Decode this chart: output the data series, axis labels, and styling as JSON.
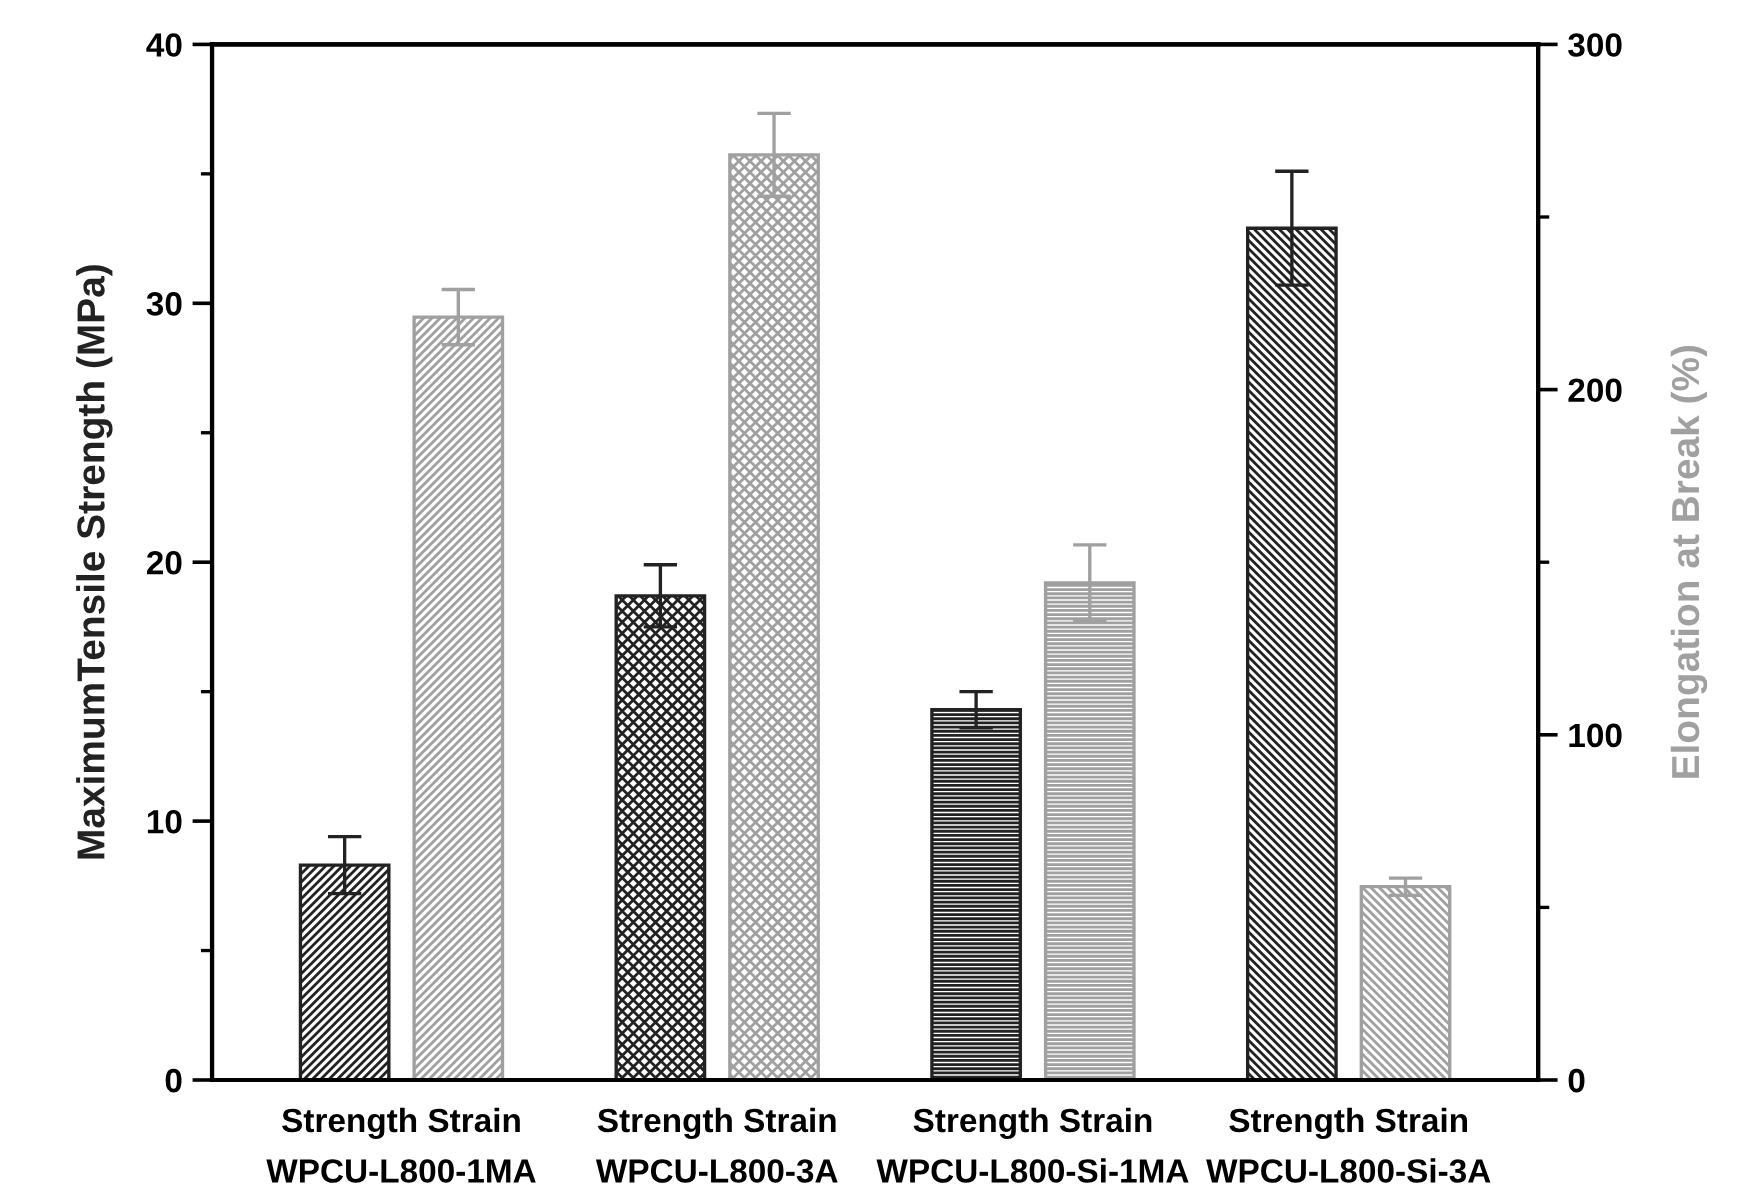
{
  "chart_data": {
    "type": "bar",
    "ylabel": "MaximumTensile Strength (MPa)",
    "y2label": "Elongation at Break (%)",
    "categories": [
      "Strength Strain\nWPCU-L800-1MA",
      "Strength Strain\nWPCU-L800-3A",
      "Strength Strain\nWPCU-L800-Si-1MA",
      "Strength Strain\nWPCU-L800-Si-3A"
    ],
    "series": [
      {
        "color": "#222222",
        "values": [
          8.3,
          18.7,
          14.3,
          32.9
        ],
        "errors": [
          1.1,
          1.2,
          0.7,
          2.2
        ]
      },
      {
        "color": "#a0a0a0",
        "axis": "y2",
        "values": [
          221,
          268,
          144,
          56
        ],
        "errors": [
          8,
          12,
          11,
          2.5
        ]
      }
    ],
    "ylim": [
      0,
      40
    ],
    "yticks": [
      0,
      10,
      20,
      30,
      40
    ],
    "y2lim": [
      0,
      300
    ],
    "y2ticks": [
      0,
      100,
      200,
      300
    ],
    "grid": false,
    "legend": false
  }
}
